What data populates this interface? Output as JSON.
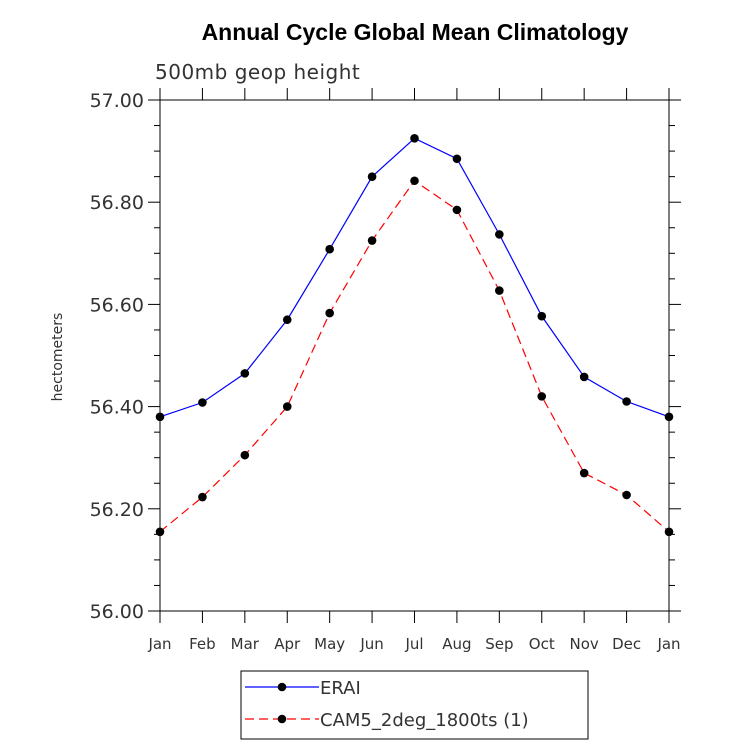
{
  "chart_data": {
    "type": "line",
    "title": "Annual Cycle Global Mean Climatology",
    "subtitle": "500mb geop height",
    "xlabel": "",
    "ylabel": "hectometers",
    "categories": [
      "Jan",
      "Feb",
      "Mar",
      "Apr",
      "May",
      "Jun",
      "Jul",
      "Aug",
      "Sep",
      "Oct",
      "Nov",
      "Dec",
      "Jan"
    ],
    "ylim": [
      56.0,
      57.0
    ],
    "yticks": [
      "56.00",
      "56.20",
      "56.40",
      "56.60",
      "56.80",
      "57.00"
    ],
    "grid": false,
    "legend_position": "bottom",
    "series": [
      {
        "name": "ERAI",
        "color": "#0000ff",
        "dash": "solid",
        "marker": "filled-circle",
        "values": [
          56.38,
          56.408,
          56.465,
          56.57,
          56.708,
          56.85,
          56.925,
          56.885,
          56.737,
          56.577,
          56.458,
          56.41,
          56.38
        ]
      },
      {
        "name": "CAM5_2deg_1800ts (1)",
        "color": "#ff0000",
        "dash": "dashed",
        "marker": "filled-circle",
        "values": [
          56.155,
          56.223,
          56.305,
          56.4,
          56.583,
          56.725,
          56.842,
          56.785,
          56.627,
          56.42,
          56.27,
          56.227,
          56.155
        ]
      }
    ]
  }
}
